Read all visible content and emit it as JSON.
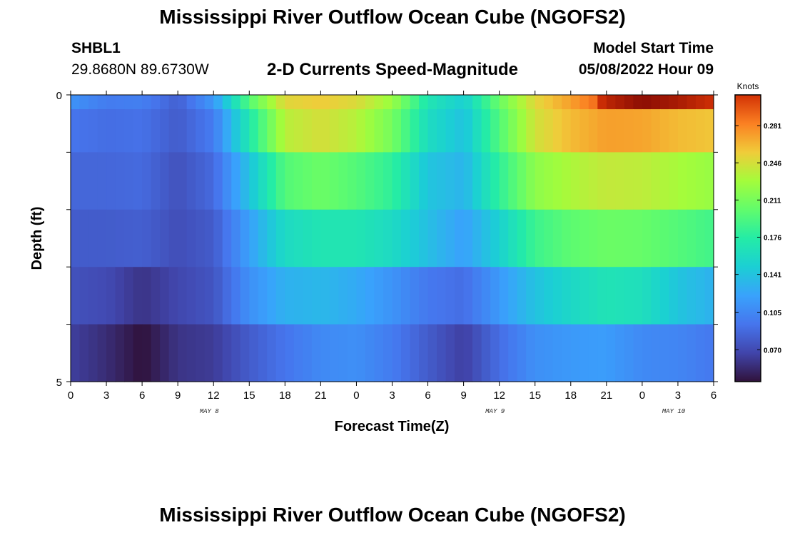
{
  "header": {
    "title": "Mississippi River Outflow Ocean Cube (NGOFS2)",
    "station": "SHBL1",
    "coords": "29.8680N  89.6730W",
    "subtitle": "2-D Currents Speed-Magnitude",
    "model_start_label": "Model Start Time",
    "model_start_value": "05/08/2022 Hour 09"
  },
  "footer": {
    "title": "Mississippi River Outflow Ocean Cube (NGOFS2)"
  },
  "chart_data": {
    "type": "heatmap",
    "ylabel": "Depth (ft)",
    "xlabel": "Forecast Time(Z)",
    "colorbar_unit": "Knots",
    "y_tick_labels": [
      "0",
      "5"
    ],
    "ylim": [
      0,
      5
    ],
    "x_tick_labels": [
      "0",
      "3",
      "6",
      "9",
      "12",
      "15",
      "18",
      "21",
      "0",
      "3",
      "6",
      "9",
      "12",
      "15",
      "18",
      "21",
      "0",
      "3",
      "6"
    ],
    "day_labels": [
      {
        "text": "MAY 8",
        "tick_index": 4
      },
      {
        "text": "MAY 9",
        "tick_index": 12
      },
      {
        "text": "MAY 10",
        "tick_index": 17
      }
    ],
    "colorbar_ticks": [
      "0.070",
      "0.105",
      "0.141",
      "0.176",
      "0.211",
      "0.246",
      "0.281"
    ],
    "colorbar_tick_values": [
      0.07,
      0.105,
      0.141,
      0.176,
      0.211,
      0.246,
      0.281
    ],
    "color_range": [
      0.04,
      0.31
    ],
    "forecast_hours": [
      0,
      3,
      6,
      9,
      12,
      15,
      18,
      21,
      24,
      27,
      30,
      33,
      36,
      39,
      42,
      45,
      48,
      51,
      54
    ],
    "depth_layers": [
      0,
      0.5,
      1.5,
      2.5,
      3.5,
      4.5
    ],
    "values": [
      [
        0.112,
        0.098,
        0.1,
        0.082,
        0.115,
        0.196,
        0.25,
        0.256,
        0.248,
        0.225,
        0.168,
        0.148,
        0.205,
        0.25,
        0.272,
        0.296,
        0.306,
        0.3,
        0.292
      ],
      [
        0.094,
        0.09,
        0.092,
        0.08,
        0.098,
        0.17,
        0.236,
        0.246,
        0.235,
        0.21,
        0.16,
        0.14,
        0.195,
        0.244,
        0.262,
        0.272,
        0.27,
        0.262,
        0.258
      ],
      [
        0.086,
        0.086,
        0.088,
        0.074,
        0.088,
        0.14,
        0.196,
        0.206,
        0.196,
        0.18,
        0.142,
        0.132,
        0.18,
        0.22,
        0.232,
        0.24,
        0.238,
        0.23,
        0.224
      ],
      [
        0.08,
        0.08,
        0.082,
        0.072,
        0.08,
        0.12,
        0.158,
        0.168,
        0.168,
        0.158,
        0.138,
        0.12,
        0.15,
        0.186,
        0.2,
        0.206,
        0.204,
        0.196,
        0.188
      ],
      [
        0.074,
        0.07,
        0.058,
        0.068,
        0.076,
        0.11,
        0.13,
        0.134,
        0.126,
        0.112,
        0.096,
        0.09,
        0.116,
        0.14,
        0.156,
        0.166,
        0.162,
        0.142,
        0.13
      ],
      [
        0.064,
        0.054,
        0.04,
        0.058,
        0.062,
        0.08,
        0.094,
        0.106,
        0.11,
        0.098,
        0.08,
        0.064,
        0.09,
        0.11,
        0.116,
        0.118,
        0.106,
        0.104,
        0.096
      ]
    ]
  }
}
